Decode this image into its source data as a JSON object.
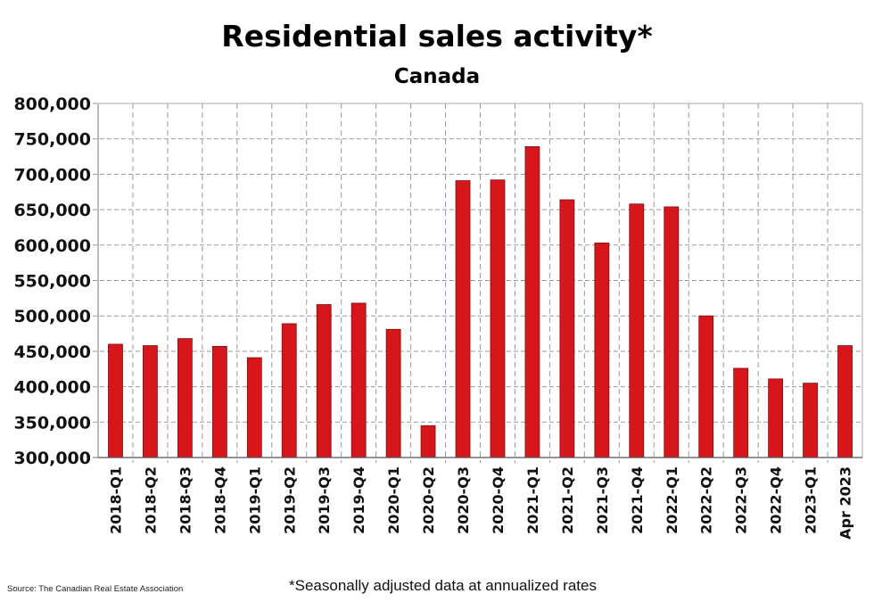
{
  "chart_data": {
    "type": "bar",
    "title": "Residential sales activity*",
    "subtitle": "Canada",
    "xlabel": "",
    "ylabel": "",
    "ylim": [
      300000,
      800000
    ],
    "yticks": [
      300000,
      350000,
      400000,
      450000,
      500000,
      550000,
      600000,
      650000,
      700000,
      750000,
      800000
    ],
    "ytick_labels": [
      "300,000",
      "350,000",
      "400,000",
      "450,000",
      "500,000",
      "550,000",
      "600,000",
      "650,000",
      "700,000",
      "750,000",
      "800,000"
    ],
    "grid": true,
    "grid_style": "dashed",
    "bar_color": "#d7161c",
    "categories": [
      "2018-Q1",
      "2018-Q2",
      "2018-Q3",
      "2018-Q4",
      "2019-Q1",
      "2019-Q2",
      "2019-Q3",
      "2019-Q4",
      "2020-Q1",
      "2020-Q2",
      "2020-Q3",
      "2020-Q4",
      "2021-Q1",
      "2021-Q2",
      "2021-Q3",
      "2021-Q4",
      "2022-Q1",
      "2022-Q2",
      "2022-Q3",
      "2022-Q4",
      "2023-Q1",
      "Apr 2023"
    ],
    "values": [
      460000,
      458000,
      468000,
      457000,
      441000,
      489000,
      516000,
      518000,
      481000,
      345000,
      691000,
      692000,
      739000,
      664000,
      603000,
      658000,
      654000,
      500000,
      426000,
      411000,
      405000,
      458000
    ],
    "source": "Source: The Canadian Real Estate Association",
    "note": "*Seasonally adjusted data at annualized rates"
  }
}
